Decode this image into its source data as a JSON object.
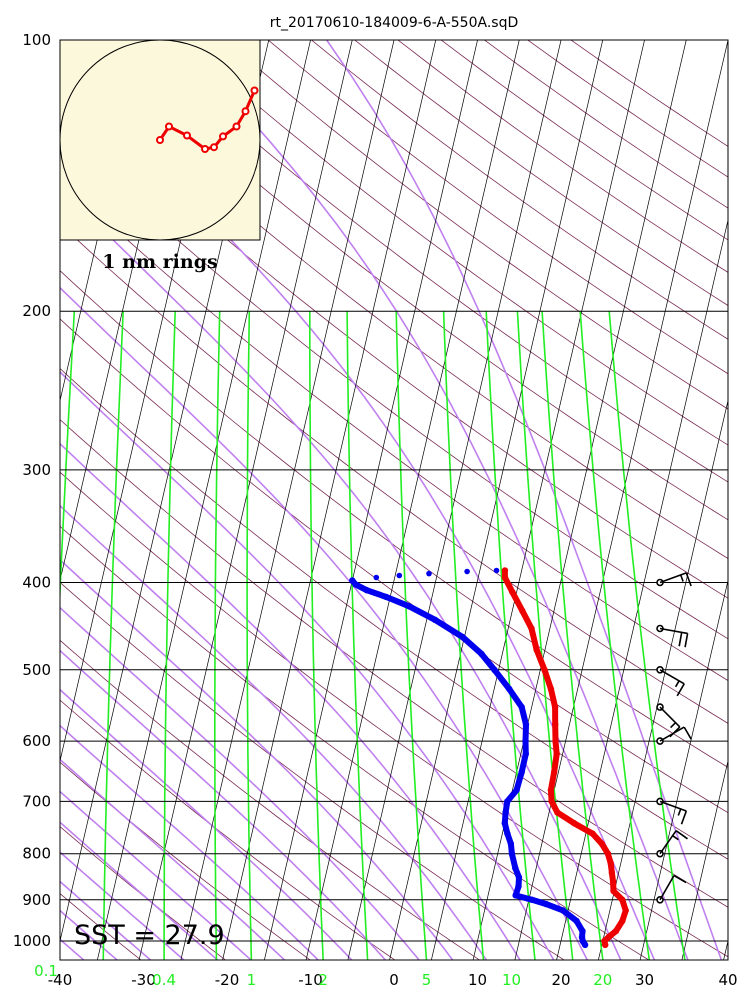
{
  "chart_data": {
    "type": "skew-t",
    "title": "rt_20170610-184009-6-A-550A.sqD",
    "annotation": "SST = 27.9",
    "inset_label": "1 nm rings",
    "pressure_ticks": [
      "100",
      "200",
      "300",
      "400",
      "500",
      "600",
      "700",
      "800",
      "900",
      "1000"
    ],
    "pressure_levels": [
      100,
      200,
      300,
      400,
      500,
      600,
      700,
      800,
      900,
      1000
    ],
    "temperature_ticks": [
      "-40",
      "-30",
      "-20",
      "-10",
      "0",
      "10",
      "20",
      "30",
      "40"
    ],
    "temperature_values": [
      -40,
      -30,
      -20,
      -10,
      0,
      10,
      20,
      30,
      40
    ],
    "mixing_ratio_ticks": [
      "0.1",
      "0.4",
      "1",
      "2",
      "5",
      "10",
      "20"
    ],
    "mixing_ratio_values": [
      0.1,
      0.4,
      1,
      2,
      5,
      10,
      20
    ],
    "xlim": [
      -40,
      40
    ],
    "ylim": [
      1050,
      100
    ],
    "skew": 25,
    "temperature_profile": [
      [
        1010,
        25.4
      ],
      [
        1000,
        25.2
      ],
      [
        990,
        25.6
      ],
      [
        975,
        26.3
      ],
      [
        950,
        26.8
      ],
      [
        925,
        26.9
      ],
      [
        900,
        26.2
      ],
      [
        880,
        24.9
      ],
      [
        860,
        24.6
      ],
      [
        840,
        24.2
      ],
      [
        820,
        23.8
      ],
      [
        800,
        23.2
      ],
      [
        780,
        22.2
      ],
      [
        760,
        20.8
      ],
      [
        740,
        18.3
      ],
      [
        720,
        16.0
      ],
      [
        700,
        15.0
      ],
      [
        680,
        14.6
      ],
      [
        650,
        14.5
      ],
      [
        620,
        14.3
      ],
      [
        600,
        13.8
      ],
      [
        575,
        13.3
      ],
      [
        550,
        12.8
      ],
      [
        525,
        11.8
      ],
      [
        500,
        10.5
      ],
      [
        475,
        9.0
      ],
      [
        450,
        7.8
      ],
      [
        430,
        6.2
      ],
      [
        410,
        4.5
      ],
      [
        395,
        3.2
      ],
      [
        388,
        3.0
      ]
    ],
    "dewpoint_profile": [
      [
        1010,
        23.0
      ],
      [
        1000,
        22.6
      ],
      [
        990,
        22.4
      ],
      [
        975,
        22.3
      ],
      [
        950,
        21.3
      ],
      [
        925,
        19.4
      ],
      [
        910,
        17.2
      ],
      [
        900,
        15.4
      ],
      [
        890,
        13.3
      ],
      [
        870,
        13.4
      ],
      [
        850,
        13.2
      ],
      [
        830,
        12.5
      ],
      [
        800,
        11.7
      ],
      [
        780,
        11.3
      ],
      [
        760,
        10.6
      ],
      [
        740,
        10.0
      ],
      [
        720,
        9.8
      ],
      [
        700,
        9.7
      ],
      [
        680,
        10.5
      ],
      [
        650,
        10.6
      ],
      [
        620,
        10.6
      ],
      [
        600,
        10.2
      ],
      [
        575,
        9.8
      ],
      [
        550,
        8.8
      ],
      [
        525,
        6.8
      ],
      [
        500,
        4.5
      ],
      [
        480,
        2.5
      ],
      [
        460,
        -0.2
      ],
      [
        440,
        -4.0
      ],
      [
        425,
        -7.5
      ],
      [
        415,
        -10.5
      ],
      [
        408,
        -13.0
      ],
      [
        402,
        -14.5
      ],
      [
        398,
        -15.0
      ]
    ],
    "dewpoint_sparse": [
      [
        395,
        -12.2
      ],
      [
        393,
        -9.5
      ],
      [
        391,
        -6.0
      ],
      [
        389,
        -1.5
      ],
      [
        388,
        2.0
      ]
    ],
    "wind_barbs": [
      {
        "p": 400,
        "dir": 250,
        "speed": 15
      },
      {
        "p": 450,
        "dir": 280,
        "speed": 20
      },
      {
        "p": 500,
        "dir": 300,
        "speed": 15
      },
      {
        "p": 550,
        "dir": 315,
        "speed": 15
      },
      {
        "p": 600,
        "dir": 240,
        "speed": 10
      },
      {
        "p": 700,
        "dir": 290,
        "speed": 15
      },
      {
        "p": 800,
        "dir": 215,
        "speed": 15
      },
      {
        "p": 900,
        "dir": 210,
        "speed": 10
      }
    ],
    "hodograph": [
      [
        0,
        0
      ],
      [
        1,
        1.5
      ],
      [
        3,
        0.5
      ],
      [
        5,
        -1
      ],
      [
        6,
        -0.8
      ],
      [
        7,
        0.4
      ],
      [
        8.5,
        1.5
      ],
      [
        9.5,
        3.2
      ],
      [
        10.5,
        5.5
      ]
    ],
    "hodograph_scale": "1 nm rings",
    "grid": true,
    "isotherm_color": "#000000",
    "dry_adiabat_color": "#7b2d55",
    "moist_adiabat_color": "#c080f0",
    "mixing_ratio_color": "#22ee22",
    "temperature_color": "#ee0000",
    "dewpoint_color": "#0000ee",
    "hodograph_background": "#fcf8dc"
  }
}
